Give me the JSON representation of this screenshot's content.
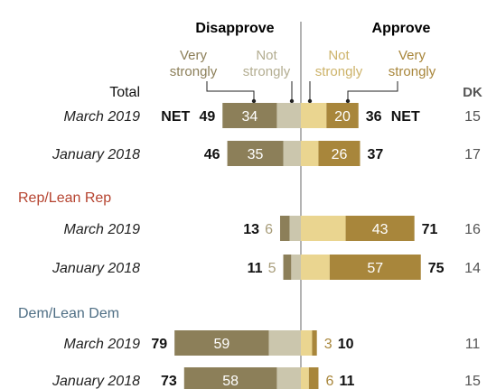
{
  "headers": {
    "disapprove": "Disapprove",
    "approve": "Approve",
    "total": "Total",
    "dk": "DK"
  },
  "legend": {
    "very_strongly_disapprove": [
      "Very",
      "strongly"
    ],
    "not_strongly_disapprove": [
      "Not",
      "strongly"
    ],
    "not_strongly_approve": [
      "Not",
      "strongly"
    ],
    "very_strongly_approve": [
      "Very",
      "strongly"
    ]
  },
  "colors": {
    "very_strongly_disapprove": "#8c7f59",
    "not_strongly_disapprove": "#cbc6ad",
    "not_strongly_approve": "#ead590",
    "very_strongly_approve": "#a8863b",
    "legend_very_disapprove": "#8c7f59",
    "legend_not_disapprove": "#b3ad91",
    "legend_not_approve": "#cdb36a",
    "legend_very_approve": "#a8863b",
    "rep_label": "#b5432f",
    "dem_label": "#4e6e84",
    "center_line": "#9a9a9a"
  },
  "chart_data": {
    "type": "bar",
    "orientation": "diverging-horizontal",
    "groups": [
      {
        "label": "",
        "rows": [
          {
            "label": "March 2019",
            "very_disapprove": 34,
            "not_disapprove": 15,
            "net_disapprove": 49,
            "not_approve": 16,
            "very_approve": 20,
            "net_approve": 36,
            "dk": 15,
            "net_prefix": "NET",
            "net_suffix": "NET"
          },
          {
            "label": "January 2018",
            "very_disapprove": 35,
            "not_disapprove": 11,
            "net_disapprove": 46,
            "not_approve": 11,
            "very_approve": 26,
            "net_approve": 37,
            "dk": 17
          }
        ]
      },
      {
        "label": "Rep/Lean Rep",
        "rows": [
          {
            "label": "March 2019",
            "very_disapprove": 6,
            "not_disapprove": 7,
            "net_disapprove": 13,
            "not_approve": 28,
            "very_approve": 43,
            "net_approve": 71,
            "dk": 16
          },
          {
            "label": "January 2018",
            "very_disapprove": 5,
            "not_disapprove": 6,
            "net_disapprove": 11,
            "not_approve": 18,
            "very_approve": 57,
            "net_approve": 75,
            "dk": 14
          }
        ]
      },
      {
        "label": "Dem/Lean Dem",
        "rows": [
          {
            "label": "March 2019",
            "very_disapprove": 59,
            "not_disapprove": 20,
            "net_disapprove": 79,
            "not_approve": 7,
            "very_approve": 3,
            "net_approve": 10,
            "dk": 11
          },
          {
            "label": "January 2018",
            "very_disapprove": 58,
            "not_disapprove": 15,
            "net_disapprove": 73,
            "not_approve": 5,
            "very_approve": 6,
            "net_approve": 11,
            "dk": 15
          }
        ]
      }
    ]
  }
}
